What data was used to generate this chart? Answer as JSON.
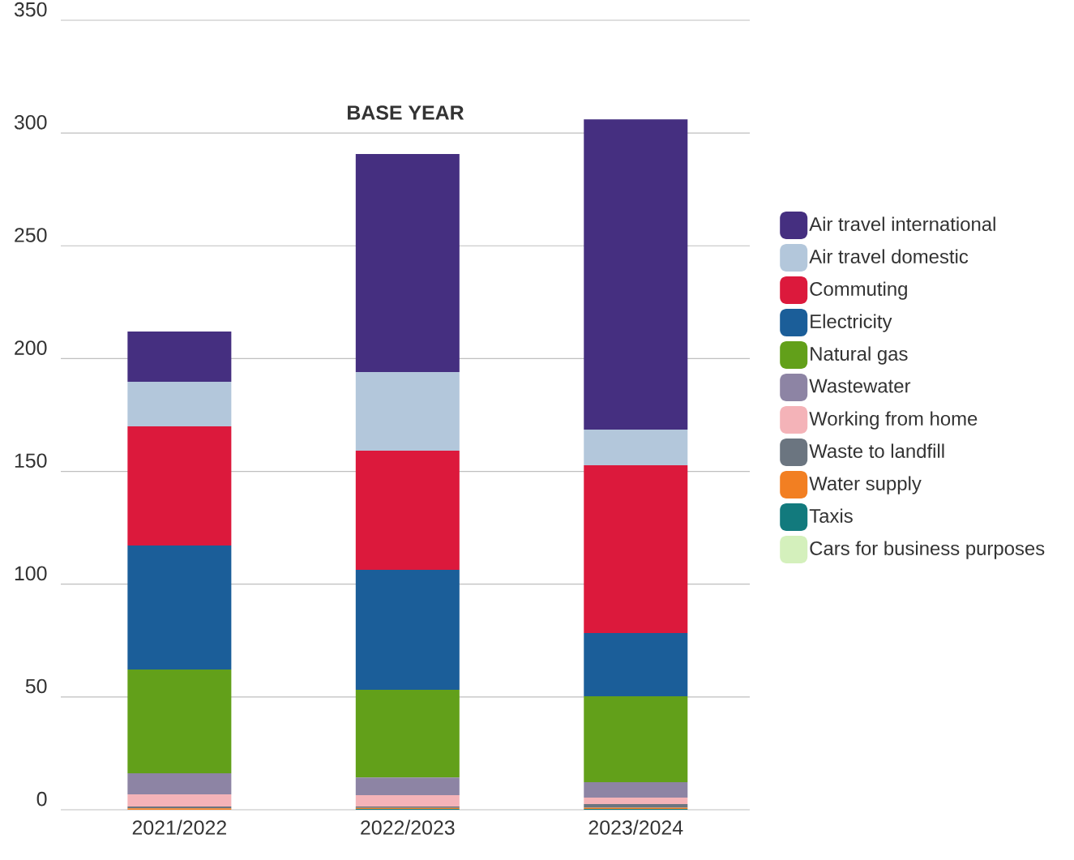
{
  "chart_data": {
    "type": "bar",
    "stacked": true,
    "categories": [
      "2021/2022",
      "2022/2023",
      "2023/2024"
    ],
    "series": [
      {
        "name": "Cars for business purposes",
        "color": "#d4f0bc",
        "values": [
          0,
          0,
          0
        ]
      },
      {
        "name": "Taxis",
        "color": "#127a7d",
        "values": [
          0,
          0.4,
          0.4
        ]
      },
      {
        "name": "Water supply",
        "color": "#f27f22",
        "values": [
          0.6,
          0.4,
          0.5
        ]
      },
      {
        "name": "Waste to landfill",
        "color": "#6b7580",
        "values": [
          0.8,
          0.6,
          1.6
        ]
      },
      {
        "name": "Working from home",
        "color": "#f4b3b8",
        "values": [
          5.4,
          5.1,
          2.9
        ]
      },
      {
        "name": "Wastewater",
        "color": "#8d84a4",
        "values": [
          9.4,
          7.8,
          6.8
        ]
      },
      {
        "name": "Natural gas",
        "color": "#62a01a",
        "values": [
          46.0,
          38.9,
          38.1
        ]
      },
      {
        "name": "Electricity",
        "color": "#1b5e99",
        "values": [
          54.9,
          53.2,
          28.0
        ]
      },
      {
        "name": "Commuting",
        "color": "#dc193c",
        "values": [
          52.9,
          52.8,
          74.4
        ]
      },
      {
        "name": "Air travel domestic",
        "color": "#b3c7db",
        "values": [
          19.7,
          34.8,
          15.8
        ]
      },
      {
        "name": "Air travel international",
        "color": "#452f80",
        "values": [
          22.3,
          96.7,
          137.6
        ]
      }
    ],
    "ylim": [
      0,
      350
    ],
    "yticks": [
      0,
      50,
      100,
      150,
      200,
      250,
      300,
      350
    ],
    "grid": "y",
    "legend": "right",
    "annotations": [
      "BASE YEAR"
    ]
  }
}
